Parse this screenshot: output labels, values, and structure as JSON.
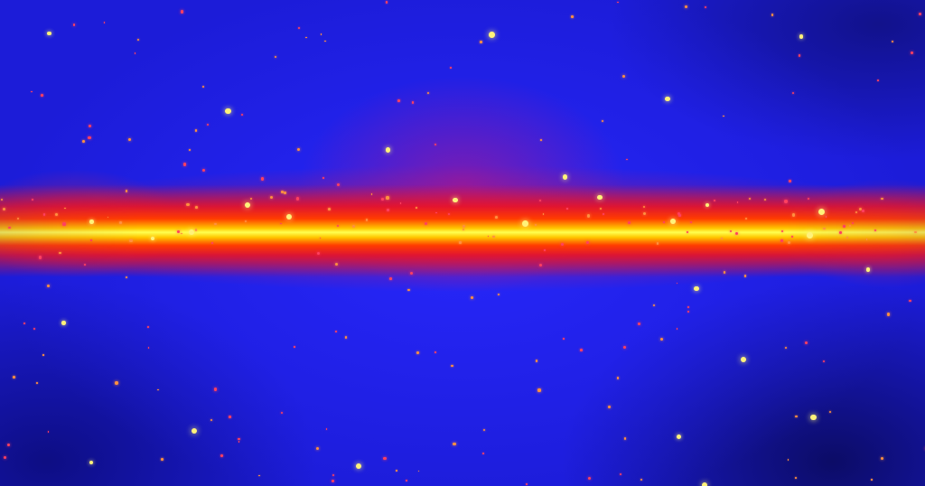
{
  "image": {
    "subject": "all-sky map",
    "colors": {
      "background": "#1c1cd8",
      "diffuse_emission": "#e6143c",
      "plane_core": "#ffff50",
      "point_sources": "#ffb040"
    }
  }
}
